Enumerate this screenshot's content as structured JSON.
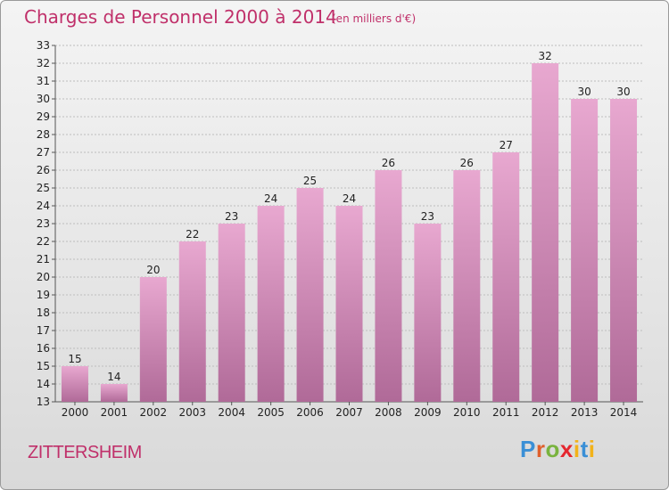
{
  "title": "Charges de Personnel 2000 à 2014",
  "subtitle": "(en milliers d'€)",
  "commune": "ZITTERSHEIM",
  "logo_text": "Proxiti",
  "colors": {
    "accent": "#c0306a",
    "bar_top": "#e8a8d0",
    "bar_bottom": "#b06a98",
    "grid": "#bdbdbd"
  },
  "chart_data": {
    "type": "bar",
    "title": "Charges de Personnel 2000 à 2014",
    "subtitle": "(en milliers d'€)",
    "categories": [
      "2000",
      "2001",
      "2002",
      "2003",
      "2004",
      "2005",
      "2006",
      "2007",
      "2008",
      "2009",
      "2010",
      "2011",
      "2012",
      "2013",
      "2014"
    ],
    "values": [
      15,
      14,
      20,
      22,
      23,
      24,
      25,
      24,
      26,
      23,
      26,
      27,
      32,
      30,
      30
    ],
    "ylim": [
      13,
      33
    ],
    "yticks": [
      13,
      14,
      15,
      16,
      17,
      18,
      19,
      20,
      21,
      22,
      23,
      24,
      25,
      26,
      27,
      28,
      29,
      30,
      31,
      32,
      33
    ],
    "grid": true,
    "xlabel": "",
    "ylabel": ""
  }
}
